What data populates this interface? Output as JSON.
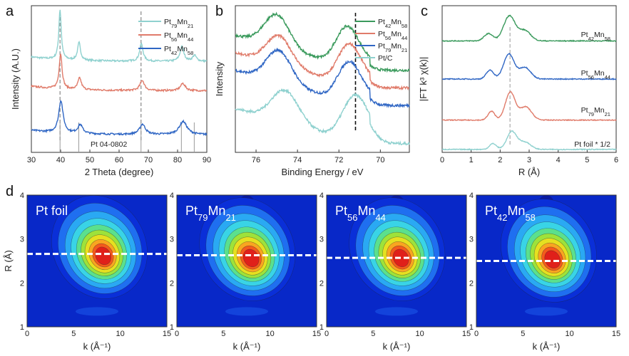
{
  "chart_data": [
    {
      "panel": "a",
      "type": "line",
      "xlabel": "2 Theta (degree)",
      "ylabel": "Intensity (A.U.)",
      "xlim": [
        30,
        90
      ],
      "xticks": [
        30,
        40,
        50,
        60,
        70,
        80,
        90
      ],
      "legend": "top-right",
      "legend_position": "top-right",
      "reference_label": "Pt 04-0802",
      "reference_lines": [
        39.8,
        46.2,
        67.5,
        81.3,
        85.7
      ],
      "dashed_lines": [
        39.8,
        67.5
      ],
      "series": [
        {
          "name": "Pt79Mn21",
          "base": "Pt",
          "sub1": "79",
          "mid": "Mn",
          "sub2": "21",
          "color": "#8fd1cf",
          "offset": 0.62,
          "peaks": [
            [
              39.8,
              0.34,
              0.5
            ],
            [
              46.3,
              0.12,
              0.6
            ],
            [
              67.6,
              0.12,
              0.7
            ],
            [
              81.5,
              0.1,
              0.8
            ],
            [
              85.8,
              0.04,
              0.8
            ]
          ]
        },
        {
          "name": "Pt56Mn44",
          "base": "Pt",
          "sub1": "56",
          "mid": "Mn",
          "sub2": "44",
          "color": "#e07b6a",
          "offset": 0.42,
          "peaks": [
            [
              40.0,
              0.24,
              0.6
            ],
            [
              46.5,
              0.08,
              0.7
            ],
            [
              67.9,
              0.07,
              0.9
            ],
            [
              81.8,
              0.05,
              1.0
            ]
          ]
        },
        {
          "name": "Pt42Mn58",
          "base": "Pt",
          "sub1": "42",
          "mid": "Mn",
          "sub2": "58",
          "color": "#2f66c4",
          "offset": 0.12,
          "peaks": [
            [
              40.1,
              0.22,
              0.9
            ],
            [
              46.7,
              0.06,
              1.0
            ],
            [
              68.0,
              0.07,
              1.2
            ],
            [
              81.9,
              0.09,
              1.6
            ]
          ]
        }
      ]
    },
    {
      "panel": "b",
      "type": "line",
      "xlabel": "Binding Energy / eV",
      "ylabel": "Intensity",
      "xlim": [
        77,
        68.6
      ],
      "xticks": [
        76,
        74,
        72,
        70
      ],
      "legend": "top-right",
      "legend_position": "top-right",
      "dashed_lines": [
        71.2
      ],
      "series": [
        {
          "name": "Pt42Mn58",
          "base": "Pt",
          "sub1": "42",
          "mid": "Mn",
          "sub2": "58",
          "color": "#3a9a5c",
          "offset": 0.62,
          "peaks": [
            [
              75.0,
              0.22,
              0.6
            ],
            [
              71.6,
              0.24,
              0.55
            ]
          ]
        },
        {
          "name": "Pt56Mn44",
          "base": "Pt",
          "sub1": "56",
          "mid": "Mn",
          "sub2": "44",
          "color": "#e07b6a",
          "offset": 0.5,
          "peaks": [
            [
              74.9,
              0.2,
              0.6
            ],
            [
              71.5,
              0.24,
              0.55
            ]
          ]
        },
        {
          "name": "Pt79Mn21",
          "base": "Pt",
          "sub1": "79",
          "mid": "Mn",
          "sub2": "21",
          "color": "#2f66c4",
          "offset": 0.38,
          "peaks": [
            [
              74.9,
              0.22,
              0.6
            ],
            [
              71.5,
              0.24,
              0.55
            ]
          ]
        },
        {
          "name": "Pt/C",
          "base": "Pt/C",
          "sub1": "",
          "mid": "",
          "sub2": "",
          "color": "#8fd1cf",
          "offset": 0.12,
          "peaks": [
            [
              74.6,
              0.22,
              0.65
            ],
            [
              71.2,
              0.27,
              0.6
            ]
          ]
        }
      ]
    },
    {
      "panel": "c",
      "type": "line",
      "xlabel": "R (Å)",
      "ylabel": "|FT k³ χ(k)|",
      "xlim": [
        0,
        6
      ],
      "xticks": [
        0,
        1,
        2,
        3,
        4,
        5,
        6
      ],
      "dashed_lines": [
        2.34
      ],
      "series": [
        {
          "name": "Pt42Mn58",
          "base": "Pt",
          "sub1": "42",
          "mid": "Mn",
          "sub2": "58",
          "color": "#3a9a5c",
          "offset": 0.76,
          "peaks": [
            [
              1.6,
              0.05,
              0.15
            ],
            [
              2.32,
              0.17,
              0.2
            ],
            [
              2.85,
              0.07,
              0.2
            ]
          ]
        },
        {
          "name": "Pt56Mn44",
          "base": "Pt",
          "sub1": "56",
          "mid": "Mn",
          "sub2": "44",
          "color": "#2f66c4",
          "offset": 0.5,
          "peaks": [
            [
              1.65,
              0.06,
              0.13
            ],
            [
              2.3,
              0.17,
              0.18
            ],
            [
              2.85,
              0.08,
              0.2
            ]
          ]
        },
        {
          "name": "Pt79Mn21",
          "base": "Pt",
          "sub1": "79",
          "mid": "Mn",
          "sub2": "21",
          "color": "#e07b6a",
          "offset": 0.22,
          "peaks": [
            [
              1.7,
              0.06,
              0.12
            ],
            [
              2.35,
              0.19,
              0.17
            ],
            [
              2.88,
              0.09,
              0.2
            ]
          ]
        },
        {
          "name": "Pt foil * 1/2",
          "base": "Pt foil * 1/2",
          "sub1": "",
          "mid": "",
          "sub2": "",
          "color": "#8fd1cf",
          "offset": 0.02,
          "peaks": [
            [
              1.75,
              0.04,
              0.12
            ],
            [
              2.4,
              0.12,
              0.17
            ],
            [
              2.85,
              0.05,
              0.2
            ]
          ]
        }
      ]
    },
    {
      "panel": "d",
      "type": "heatmap",
      "xlabel": "k (Å⁻¹)",
      "ylabel": "R (Å)",
      "xlim": [
        0,
        15
      ],
      "ylim": [
        1,
        4
      ],
      "xticks": [
        0,
        5,
        10,
        15
      ],
      "yticks": [
        1,
        2,
        3,
        4
      ],
      "maps": [
        {
          "title": "Pt foil",
          "base": "Pt foil",
          "sub1": "",
          "mid": "",
          "sub2": "",
          "center_k": 8.2,
          "center_r": 2.6,
          "dashed_r": 2.66
        },
        {
          "title": "Pt79Mn21",
          "base": "Pt",
          "sub1": "79",
          "mid": "Mn",
          "sub2": "21",
          "center_k": 8.0,
          "center_r": 2.55,
          "dashed_r": 2.63
        },
        {
          "title": "Pt56Mn44",
          "base": "Pt",
          "sub1": "56",
          "mid": "Mn",
          "sub2": "44",
          "center_k": 8.0,
          "center_r": 2.55,
          "dashed_r": 2.57
        },
        {
          "title": "Pt42Mn58",
          "base": "Pt",
          "sub1": "42",
          "mid": "Mn",
          "sub2": "58",
          "center_k": 8.2,
          "center_r": 2.52,
          "dashed_r": 2.5
        }
      ]
    }
  ],
  "panel_letters": [
    "a",
    "b",
    "c",
    "d"
  ]
}
